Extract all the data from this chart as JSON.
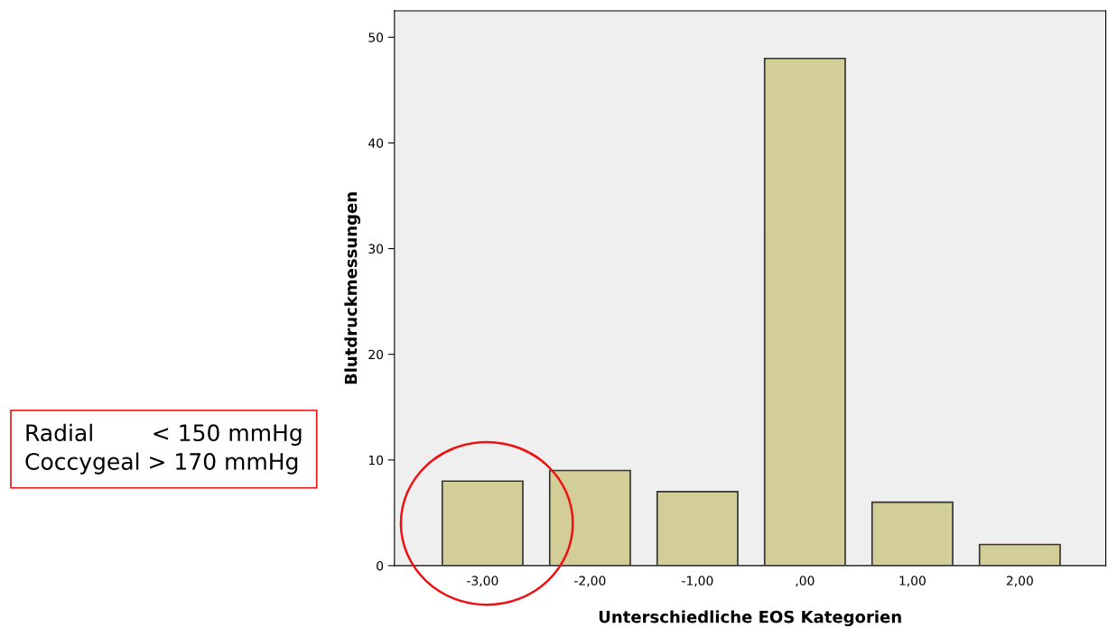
{
  "chart_data": {
    "type": "bar",
    "xlabel": "Unterschiedliche EOS Kategorien",
    "ylabel": "Blutdruckmessungen",
    "categories": [
      "-3,00",
      "-2,00",
      "-1,00",
      ",00",
      "1,00",
      "2,00"
    ],
    "values": [
      8,
      9,
      7,
      48,
      6,
      2
    ],
    "color": "#d3ce98",
    "ylim": [
      0,
      52.5
    ],
    "yticks": [
      0,
      10,
      20,
      30,
      40,
      50
    ],
    "grid": false,
    "annotations": [
      "Radial        < 150 mmHg",
      "Coccygeal > 170 mmHg"
    ]
  }
}
